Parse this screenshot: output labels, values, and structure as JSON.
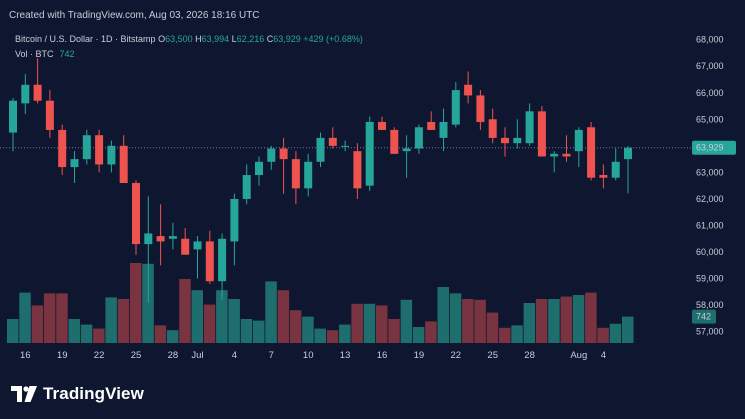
{
  "caption": "Created with TradingView.com, Aug 03, 2026 18:16 UTC",
  "legend": {
    "symbol": "Bitcoin / U.S. Dollar · 1D · Bitstamp",
    "o_label": "O",
    "o_value": "63,500",
    "h_label": "H",
    "h_value": "63,994",
    "l_label": "L",
    "l_value": "62,216",
    "c_label": "C",
    "c_value": "63,929",
    "change": "+429 (+0.68%)"
  },
  "volume": {
    "label": "Vol · BTC",
    "value": "742"
  },
  "price_badge": "63,929",
  "volume_badge": "742",
  "brand": {
    "name": "TradingView",
    "logo_icon": "tradingview-logo-icon"
  },
  "colors": {
    "background": "#0f1730",
    "up": "#26a69a",
    "down": "#ef5350",
    "up_volume": "#1f6e6e",
    "down_volume": "#7a3340"
  },
  "chart_data": {
    "type": "candlestick",
    "y_ticks": [
      "68,000",
      "67,000",
      "66,000",
      "65,000",
      "64,000",
      "63,000",
      "62,000",
      "61,000",
      "60,000",
      "59,000",
      "58,000",
      "57,000"
    ],
    "ylim": [
      56800,
      68100
    ],
    "x_ticks": [
      {
        "label": "16",
        "index": 1
      },
      {
        "label": "19",
        "index": 4
      },
      {
        "label": "22",
        "index": 7
      },
      {
        "label": "25",
        "index": 10
      },
      {
        "label": "28",
        "index": 13
      },
      {
        "label": "Jul",
        "index": 15
      },
      {
        "label": "4",
        "index": 18
      },
      {
        "label": "7",
        "index": 21
      },
      {
        "label": "10",
        "index": 24
      },
      {
        "label": "13",
        "index": 27
      },
      {
        "label": "16",
        "index": 30
      },
      {
        "label": "19",
        "index": 33
      },
      {
        "label": "22",
        "index": 36
      },
      {
        "label": "25",
        "index": 39
      },
      {
        "label": "28",
        "index": 42
      },
      {
        "label": "Aug",
        "index": 46
      },
      {
        "label": "4",
        "index": 48
      }
    ],
    "last_close": 63929,
    "candles": [
      {
        "o": 64500,
        "h": 65800,
        "l": 63800,
        "c": 65700,
        "v": 0.3
      },
      {
        "o": 65600,
        "h": 66700,
        "l": 65200,
        "c": 66300,
        "v": 0.63
      },
      {
        "o": 66300,
        "h": 67300,
        "l": 65600,
        "c": 65700,
        "v": 0.47
      },
      {
        "o": 65700,
        "h": 66100,
        "l": 64300,
        "c": 64600,
        "v": 0.62
      },
      {
        "o": 64600,
        "h": 64800,
        "l": 62900,
        "c": 63200,
        "v": 0.62
      },
      {
        "o": 63200,
        "h": 63800,
        "l": 62600,
        "c": 63500,
        "v": 0.3
      },
      {
        "o": 63500,
        "h": 64600,
        "l": 63300,
        "c": 64400,
        "v": 0.23
      },
      {
        "o": 64400,
        "h": 64600,
        "l": 63000,
        "c": 63300,
        "v": 0.18
      },
      {
        "o": 63300,
        "h": 64200,
        "l": 63000,
        "c": 64000,
        "v": 0.57
      },
      {
        "o": 64000,
        "h": 64400,
        "l": 62600,
        "c": 62600,
        "v": 0.55
      },
      {
        "o": 62600,
        "h": 62700,
        "l": 59900,
        "c": 60300,
        "v": 1.0
      },
      {
        "o": 60300,
        "h": 62100,
        "l": 58100,
        "c": 60700,
        "v": 0.99
      },
      {
        "o": 60600,
        "h": 61800,
        "l": 59500,
        "c": 60400,
        "v": 0.22
      },
      {
        "o": 60500,
        "h": 61100,
        "l": 60100,
        "c": 60600,
        "v": 0.16
      },
      {
        "o": 60500,
        "h": 60900,
        "l": 59900,
        "c": 59900,
        "v": 0.8
      },
      {
        "o": 60100,
        "h": 60600,
        "l": 59000,
        "c": 60400,
        "v": 0.66
      },
      {
        "o": 60400,
        "h": 60800,
        "l": 58800,
        "c": 58900,
        "v": 0.48
      },
      {
        "o": 58900,
        "h": 60700,
        "l": 58200,
        "c": 60500,
        "v": 0.66
      },
      {
        "o": 60400,
        "h": 62200,
        "l": 59500,
        "c": 62000,
        "v": 0.55
      },
      {
        "o": 62000,
        "h": 63300,
        "l": 61800,
        "c": 62900,
        "v": 0.3
      },
      {
        "o": 62900,
        "h": 63600,
        "l": 62500,
        "c": 63400,
        "v": 0.28
      },
      {
        "o": 63400,
        "h": 64000,
        "l": 63100,
        "c": 63900,
        "v": 0.77
      },
      {
        "o": 63900,
        "h": 64300,
        "l": 62200,
        "c": 63500,
        "v": 0.66
      },
      {
        "o": 63500,
        "h": 63800,
        "l": 61800,
        "c": 62400,
        "v": 0.41
      },
      {
        "o": 62400,
        "h": 63700,
        "l": 62100,
        "c": 63400,
        "v": 0.33
      },
      {
        "o": 63400,
        "h": 64500,
        "l": 63200,
        "c": 64300,
        "v": 0.18
      },
      {
        "o": 64300,
        "h": 64700,
        "l": 63900,
        "c": 64000,
        "v": 0.16
      },
      {
        "o": 64000,
        "h": 64200,
        "l": 63800,
        "c": 64000,
        "v": 0.23
      },
      {
        "o": 63800,
        "h": 64100,
        "l": 62000,
        "c": 62400,
        "v": 0.49
      },
      {
        "o": 62500,
        "h": 65100,
        "l": 62300,
        "c": 64900,
        "v": 0.49
      },
      {
        "o": 64900,
        "h": 65100,
        "l": 64600,
        "c": 64600,
        "v": 0.47
      },
      {
        "o": 64600,
        "h": 64700,
        "l": 63800,
        "c": 63700,
        "v": 0.3
      },
      {
        "o": 63800,
        "h": 64400,
        "l": 62800,
        "c": 63900,
        "v": 0.54
      },
      {
        "o": 63900,
        "h": 64800,
        "l": 63700,
        "c": 64700,
        "v": 0.2
      },
      {
        "o": 64900,
        "h": 65300,
        "l": 64600,
        "c": 64600,
        "v": 0.27
      },
      {
        "o": 64300,
        "h": 65400,
        "l": 63800,
        "c": 64900,
        "v": 0.7
      },
      {
        "o": 64800,
        "h": 66400,
        "l": 64700,
        "c": 66100,
        "v": 0.62
      },
      {
        "o": 66300,
        "h": 66800,
        "l": 65600,
        "c": 65900,
        "v": 0.55
      },
      {
        "o": 65900,
        "h": 66100,
        "l": 64600,
        "c": 64900,
        "v": 0.54
      },
      {
        "o": 65000,
        "h": 65400,
        "l": 64100,
        "c": 64300,
        "v": 0.38
      },
      {
        "o": 64300,
        "h": 64700,
        "l": 63600,
        "c": 64100,
        "v": 0.19
      },
      {
        "o": 64100,
        "h": 65000,
        "l": 63900,
        "c": 64300,
        "v": 0.22
      },
      {
        "o": 64100,
        "h": 65600,
        "l": 64000,
        "c": 65300,
        "v": 0.5
      },
      {
        "o": 65300,
        "h": 65500,
        "l": 63700,
        "c": 63600,
        "v": 0.55
      },
      {
        "o": 63600,
        "h": 63800,
        "l": 63000,
        "c": 63700,
        "v": 0.55
      },
      {
        "o": 63700,
        "h": 64400,
        "l": 63400,
        "c": 63600,
        "v": 0.58
      },
      {
        "o": 63800,
        "h": 64700,
        "l": 63200,
        "c": 64600,
        "v": 0.6
      },
      {
        "o": 64700,
        "h": 64900,
        "l": 62700,
        "c": 62800,
        "v": 0.63
      },
      {
        "o": 62900,
        "h": 63300,
        "l": 62400,
        "c": 62800,
        "v": 0.19
      },
      {
        "o": 62800,
        "h": 63900,
        "l": 62700,
        "c": 63400,
        "v": 0.24
      },
      {
        "o": 63500,
        "h": 63994,
        "l": 62216,
        "c": 63929,
        "v": 0.33
      }
    ]
  }
}
